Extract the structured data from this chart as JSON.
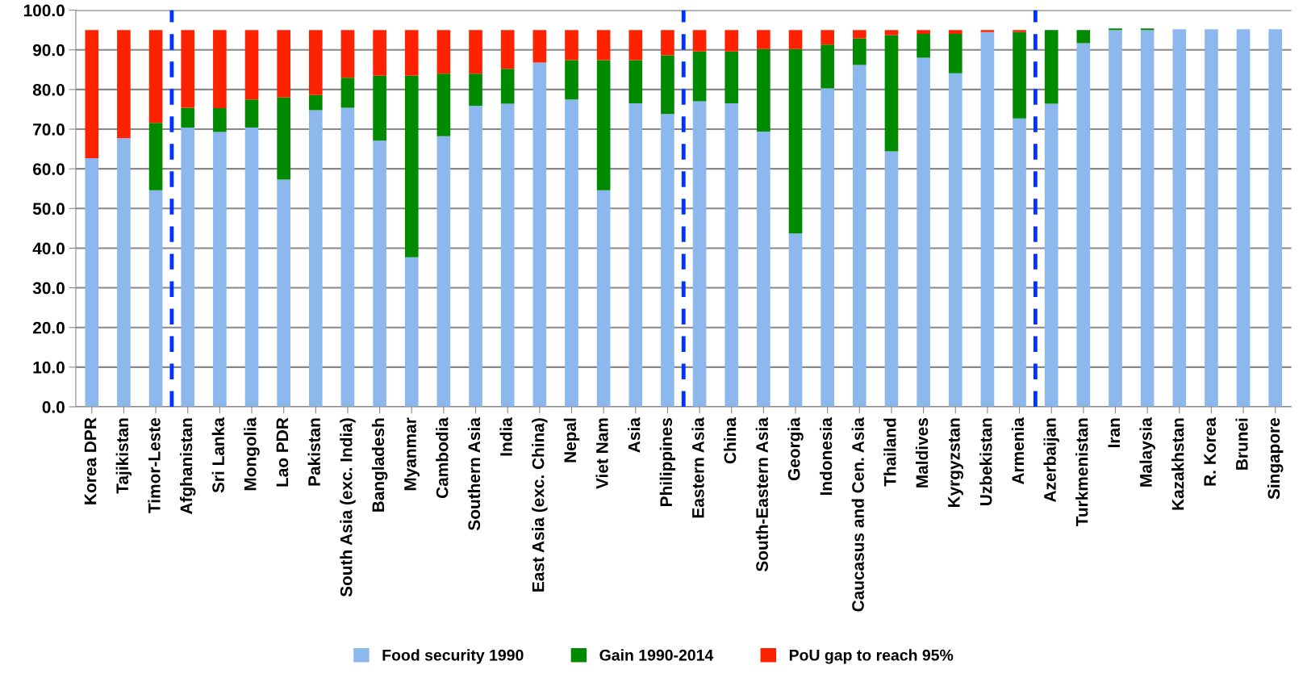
{
  "chart_data": {
    "type": "bar",
    "stacked": true,
    "categories": [
      "Korea DPR",
      "Tajikistan",
      "Timor-Leste",
      "Afghanistan",
      "Sri Lanka",
      "Mongolia",
      "Lao PDR",
      "Pakistan",
      "South Asia (exc. India)",
      "Bangladesh",
      "Myanmar",
      "Cambodia",
      "Southern Asia",
      "India",
      "East Asia (exc. China)",
      "Nepal",
      "Viet Nam",
      "Asia",
      "Philippines",
      "Eastern Asia",
      "China",
      "South-Eastern Asia",
      "Georgia",
      "Indonesia",
      "Caucasus and Cen. Asia",
      "Thailand",
      "Maldives",
      "Kyrgyzstan",
      "Uzbekistan",
      "Armenia",
      "Azerbaijan",
      "Turkmenistan",
      "Iran",
      "Malaysia",
      "Kazakhstan",
      "R. Korea",
      "Brunei",
      "Singapore"
    ],
    "series": [
      {
        "name": "Food security 1990",
        "color": "#8db8ee",
        "values": [
          62.7,
          67.7,
          54.6,
          70.4,
          69.3,
          70.4,
          57.3,
          74.8,
          75.4,
          67.1,
          37.7,
          68.2,
          75.9,
          76.4,
          86.8,
          77.5,
          54.6,
          76.5,
          73.8,
          77.0,
          76.5,
          69.4,
          43.7,
          80.3,
          86.2,
          64.4,
          88.0,
          84.1,
          94.5,
          72.7,
          76.4,
          91.7,
          95.0,
          95.0,
          95.2,
          95.2,
          95.2,
          95.2
        ]
      },
      {
        "name": "Gain 1990-2014",
        "color": "#008a00",
        "values": [
          0,
          0,
          17.0,
          5.0,
          6.0,
          7.1,
          20.7,
          3.8,
          7.6,
          16.4,
          45.8,
          15.8,
          8.1,
          8.8,
          0,
          9.9,
          32.8,
          10.9,
          14.8,
          12.6,
          13.1,
          20.8,
          46.5,
          11.0,
          6.7,
          29.3,
          6.0,
          9.9,
          0,
          21.8,
          18.6,
          3.3,
          0.4,
          0.4,
          0,
          0,
          0,
          0
        ]
      },
      {
        "name": "PoU gap to reach 95%",
        "color": "#ff2200",
        "values": [
          32.3,
          27.3,
          23.4,
          19.6,
          19.7,
          17.5,
          17.0,
          16.4,
          12.0,
          11.5,
          11.5,
          11.0,
          11.0,
          9.8,
          8.2,
          7.6,
          7.6,
          7.6,
          6.4,
          5.4,
          5.4,
          4.8,
          4.8,
          3.7,
          2.1,
          1.3,
          1.0,
          1.0,
          0.5,
          0.5,
          0,
          0,
          0,
          0,
          0,
          0,
          0,
          0
        ]
      }
    ],
    "ylim": [
      0,
      100
    ],
    "yticks": [
      {
        "value": 0,
        "label": "0.0"
      },
      {
        "value": 10,
        "label": "10.0"
      },
      {
        "value": 20,
        "label": "20.0"
      },
      {
        "value": 30,
        "label": "30.0"
      },
      {
        "value": 40,
        "label": "40.0"
      },
      {
        "value": 50,
        "label": "50.0"
      },
      {
        "value": 60,
        "label": "60.0"
      },
      {
        "value": 70,
        "label": "70.0"
      },
      {
        "value": 80,
        "label": "80.0"
      },
      {
        "value": 90,
        "label": "90.0"
      },
      {
        "value": 100,
        "label": "100.0"
      }
    ],
    "grid": "y",
    "legend": "bottom"
  }
}
